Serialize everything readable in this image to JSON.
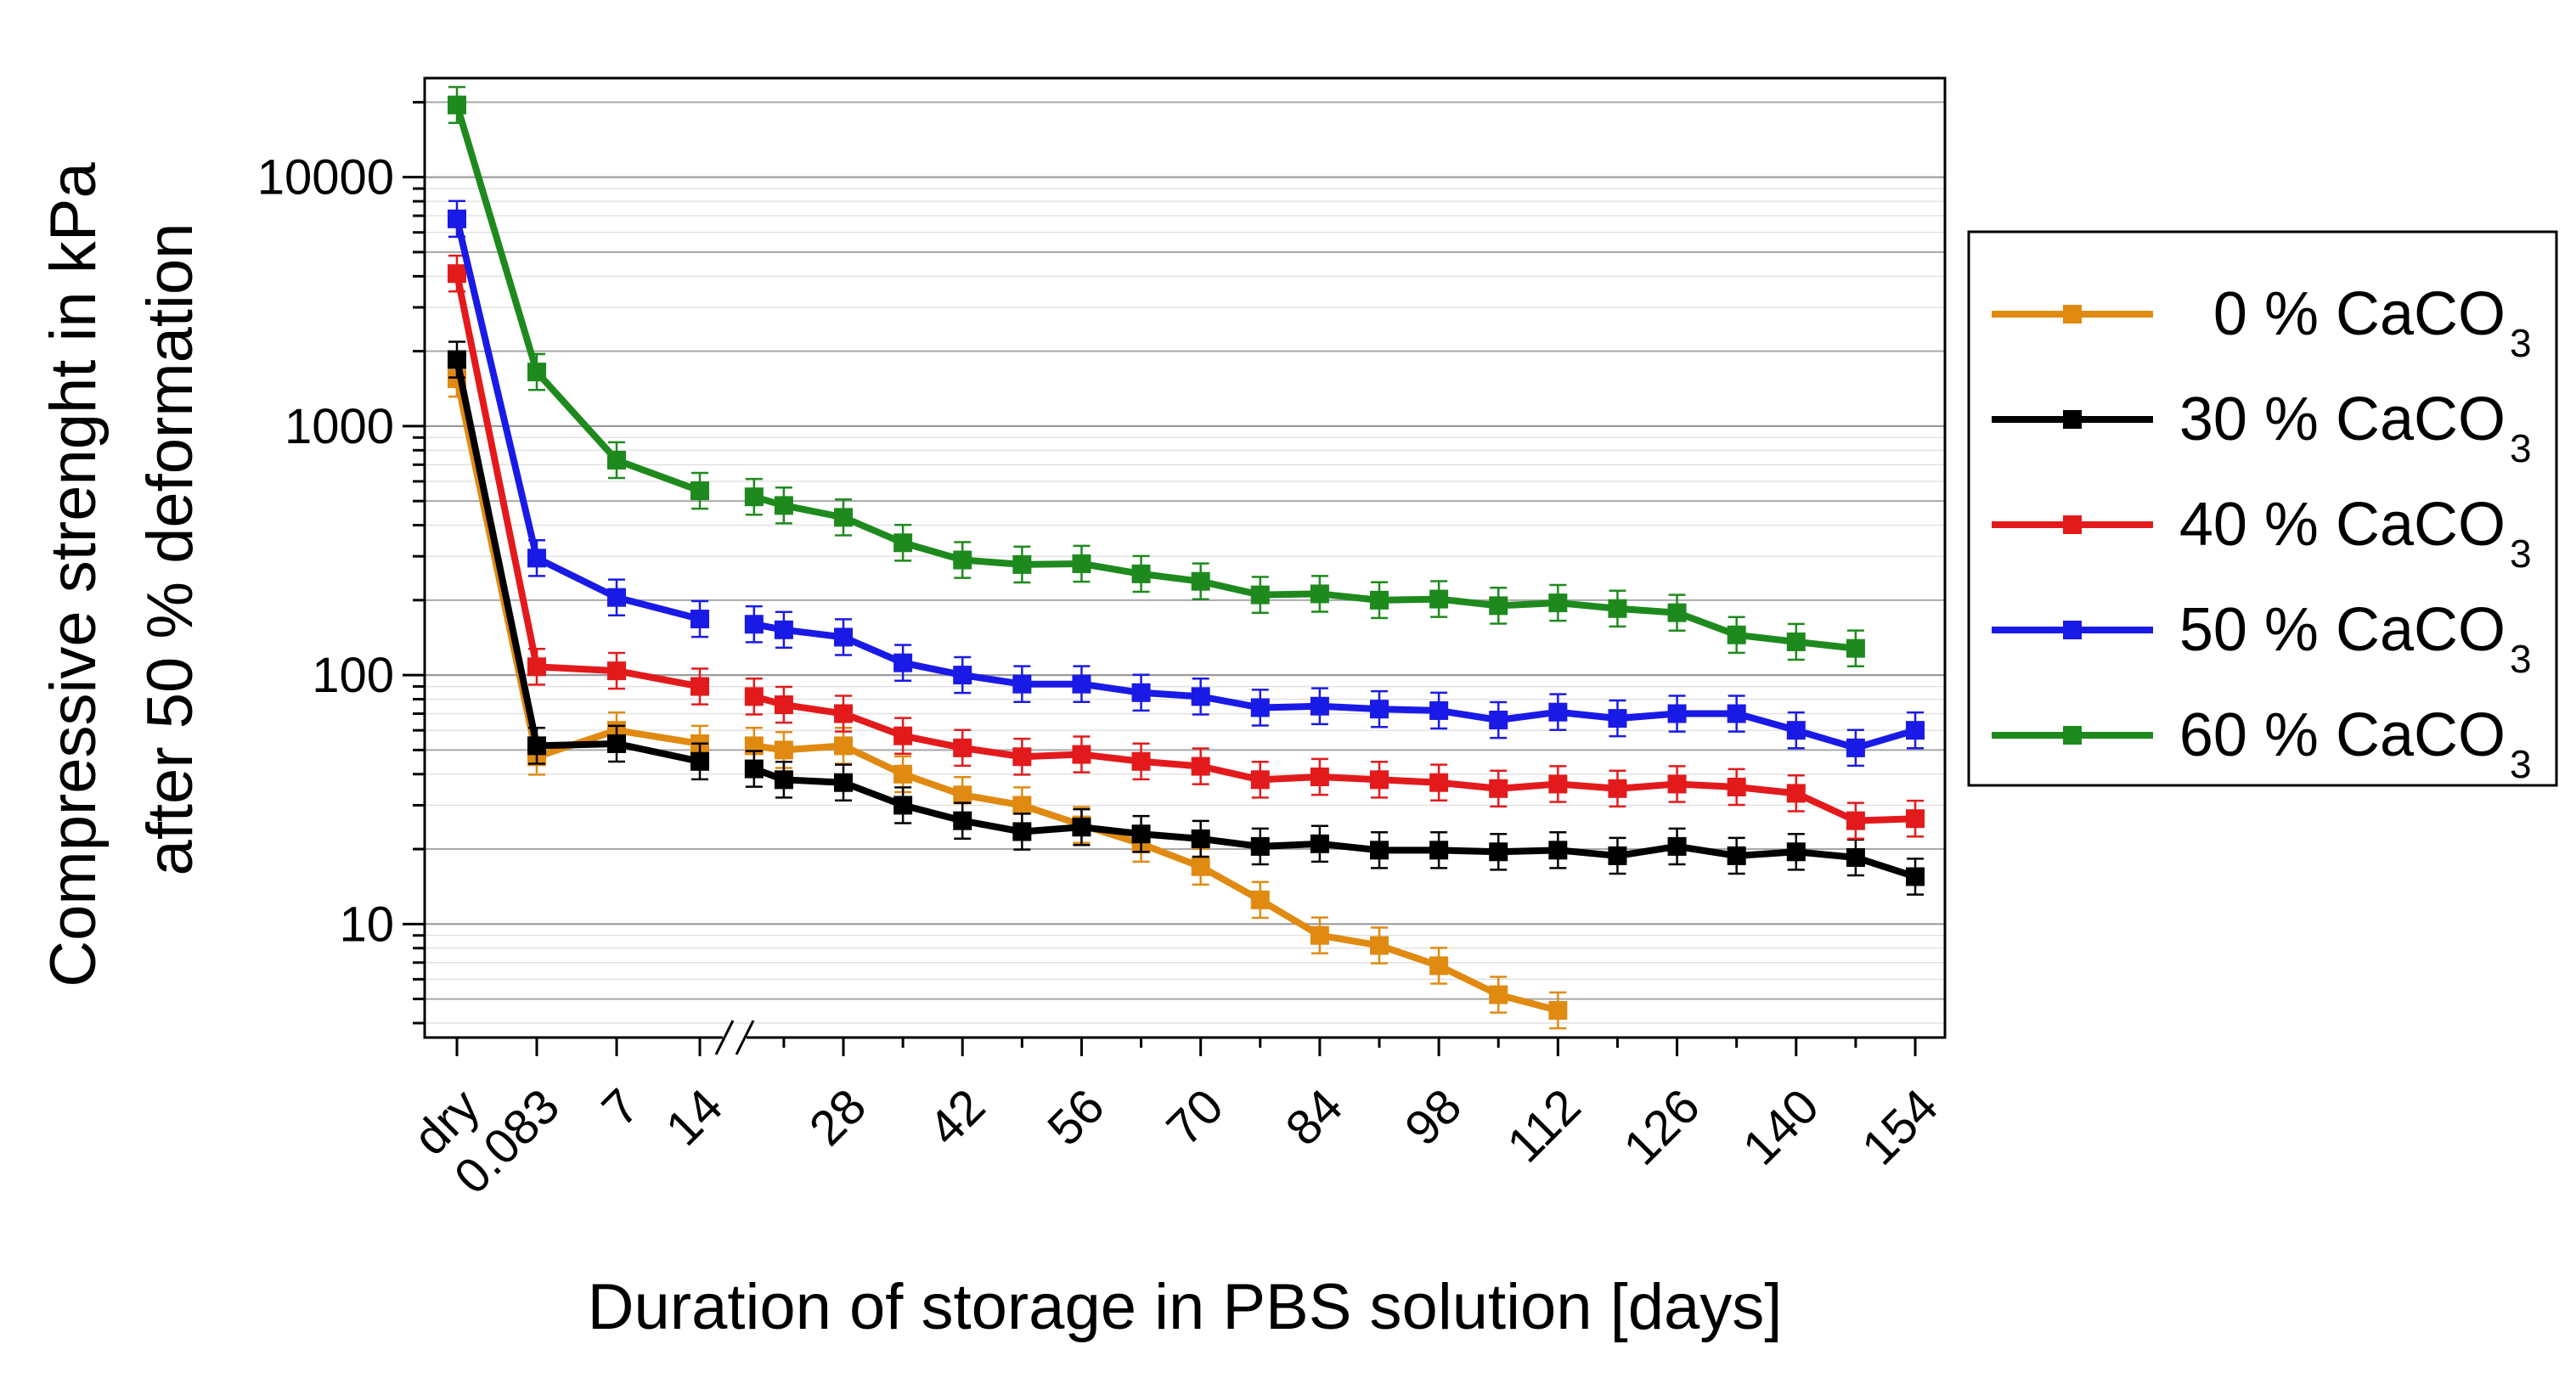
{
  "chart_data": {
    "type": "line",
    "title": "",
    "xlabel": "Duration of storage in PBS solution [days]",
    "ylabel": [
      "Compressive strenght in kPa",
      "after 50 % deformation"
    ],
    "yscale": "log",
    "ylim": [
      3.5,
      25000
    ],
    "yticks": [
      10,
      100,
      1000,
      10000
    ],
    "ytick_labels": [
      "10",
      "100",
      "1000",
      "10000"
    ],
    "x_labels": [
      "dry",
      "0.083",
      "7",
      "14",
      "28",
      "42",
      "56",
      "70",
      "84",
      "98",
      "112",
      "126",
      "140",
      "154"
    ],
    "axis_break_after": "14",
    "legend_position": "right, outside plot",
    "series": [
      {
        "name": "0 % CaCO",
        "subscript": "3",
        "color": "#E08A12",
        "segments": [
          [
            [
              "dry",
              1550
            ],
            [
              "0.083",
              47
            ],
            [
              "7",
              60
            ],
            [
              "14",
              53
            ]
          ],
          [
            [
              17.5,
              52
            ],
            [
              21,
              50
            ],
            [
              28,
              52
            ],
            [
              35,
              40
            ],
            [
              42,
              33
            ],
            [
              49,
              30
            ],
            [
              56,
              25
            ],
            [
              63,
              21
            ],
            [
              70,
              17
            ],
            [
              77,
              12.5
            ],
            [
              84,
              9
            ],
            [
              91,
              8.2
            ],
            [
              98,
              6.8
            ],
            [
              105,
              5.2
            ],
            [
              112,
              4.5
            ]
          ]
        ]
      },
      {
        "name": "30 % CaCO",
        "subscript": "3",
        "color": "#000000",
        "segments": [
          [
            [
              "dry",
              1850
            ],
            [
              "0.083",
              52
            ],
            [
              "7",
              53
            ],
            [
              "14",
              45
            ]
          ],
          [
            [
              17.5,
              42
            ],
            [
              21,
              38
            ],
            [
              28,
              37
            ],
            [
              35,
              30
            ],
            [
              42,
              26
            ],
            [
              49,
              23.5
            ],
            [
              56,
              24.5
            ],
            [
              63,
              23
            ],
            [
              70,
              22
            ],
            [
              77,
              20.5
            ],
            [
              84,
              21
            ],
            [
              91,
              19.8
            ],
            [
              98,
              19.8
            ],
            [
              105,
              19.5
            ],
            [
              112,
              19.8
            ],
            [
              119,
              18.8
            ],
            [
              126,
              20.5
            ],
            [
              133,
              18.8
            ],
            [
              140,
              19.5
            ],
            [
              147,
              18.5
            ],
            [
              154,
              15.5
            ]
          ]
        ]
      },
      {
        "name": "40 % CaCO",
        "subscript": "3",
        "color": "#E31A1C",
        "segments": [
          [
            [
              "dry",
              4100
            ],
            [
              "0.083",
              108
            ],
            [
              "7",
              104
            ],
            [
              "14",
              90
            ]
          ],
          [
            [
              17.5,
              82
            ],
            [
              21,
              76
            ],
            [
              28,
              70
            ],
            [
              35,
              57
            ],
            [
              42,
              51
            ],
            [
              49,
              47
            ],
            [
              56,
              48
            ],
            [
              63,
              45
            ],
            [
              70,
              43
            ],
            [
              77,
              38
            ],
            [
              84,
              39
            ],
            [
              91,
              38
            ],
            [
              98,
              37
            ],
            [
              105,
              35
            ],
            [
              112,
              36.5
            ],
            [
              119,
              35
            ],
            [
              126,
              36.5
            ],
            [
              133,
              35.5
            ],
            [
              140,
              33.5
            ],
            [
              147,
              26
            ],
            [
              154,
              26.5
            ]
          ]
        ]
      },
      {
        "name": "50 % CaCO",
        "subscript": "3",
        "color": "#1A1AE6",
        "segments": [
          [
            [
              "dry",
              6800
            ],
            [
              "0.083",
              295
            ],
            [
              "7",
              205
            ],
            [
              "14",
              168
            ]
          ],
          [
            [
              17.5,
              160
            ],
            [
              21,
              152
            ],
            [
              28,
              142
            ],
            [
              35,
              112
            ],
            [
              42,
              100
            ],
            [
              49,
              92
            ],
            [
              56,
              92
            ],
            [
              63,
              85
            ],
            [
              70,
              82
            ],
            [
              77,
              74
            ],
            [
              84,
              75
            ],
            [
              91,
              73
            ],
            [
              98,
              72
            ],
            [
              105,
              66
            ],
            [
              112,
              71
            ],
            [
              119,
              67
            ],
            [
              126,
              70
            ],
            [
              133,
              70
            ],
            [
              140,
              60
            ],
            [
              147,
              51
            ],
            [
              154,
              60
            ]
          ]
        ]
      },
      {
        "name": "60 % CaCO",
        "subscript": "3",
        "color": "#1E8A1E",
        "segments": [
          [
            [
              "dry",
              19500
            ],
            [
              "0.083",
              1650
            ],
            [
              "7",
              730
            ],
            [
              "14",
              550
            ]
          ],
          [
            [
              17.5,
              520
            ],
            [
              21,
              480
            ],
            [
              28,
              430
            ],
            [
              35,
              340
            ],
            [
              42,
              290
            ],
            [
              49,
              278
            ],
            [
              56,
              280
            ],
            [
              63,
              255
            ],
            [
              70,
              238
            ],
            [
              77,
              210
            ],
            [
              84,
              212
            ],
            [
              91,
              200
            ],
            [
              98,
              202
            ],
            [
              105,
              190
            ],
            [
              112,
              195
            ],
            [
              119,
              185
            ],
            [
              126,
              178
            ],
            [
              133,
              145
            ],
            [
              140,
              136
            ],
            [
              147,
              128
            ]
          ]
        ]
      }
    ]
  }
}
